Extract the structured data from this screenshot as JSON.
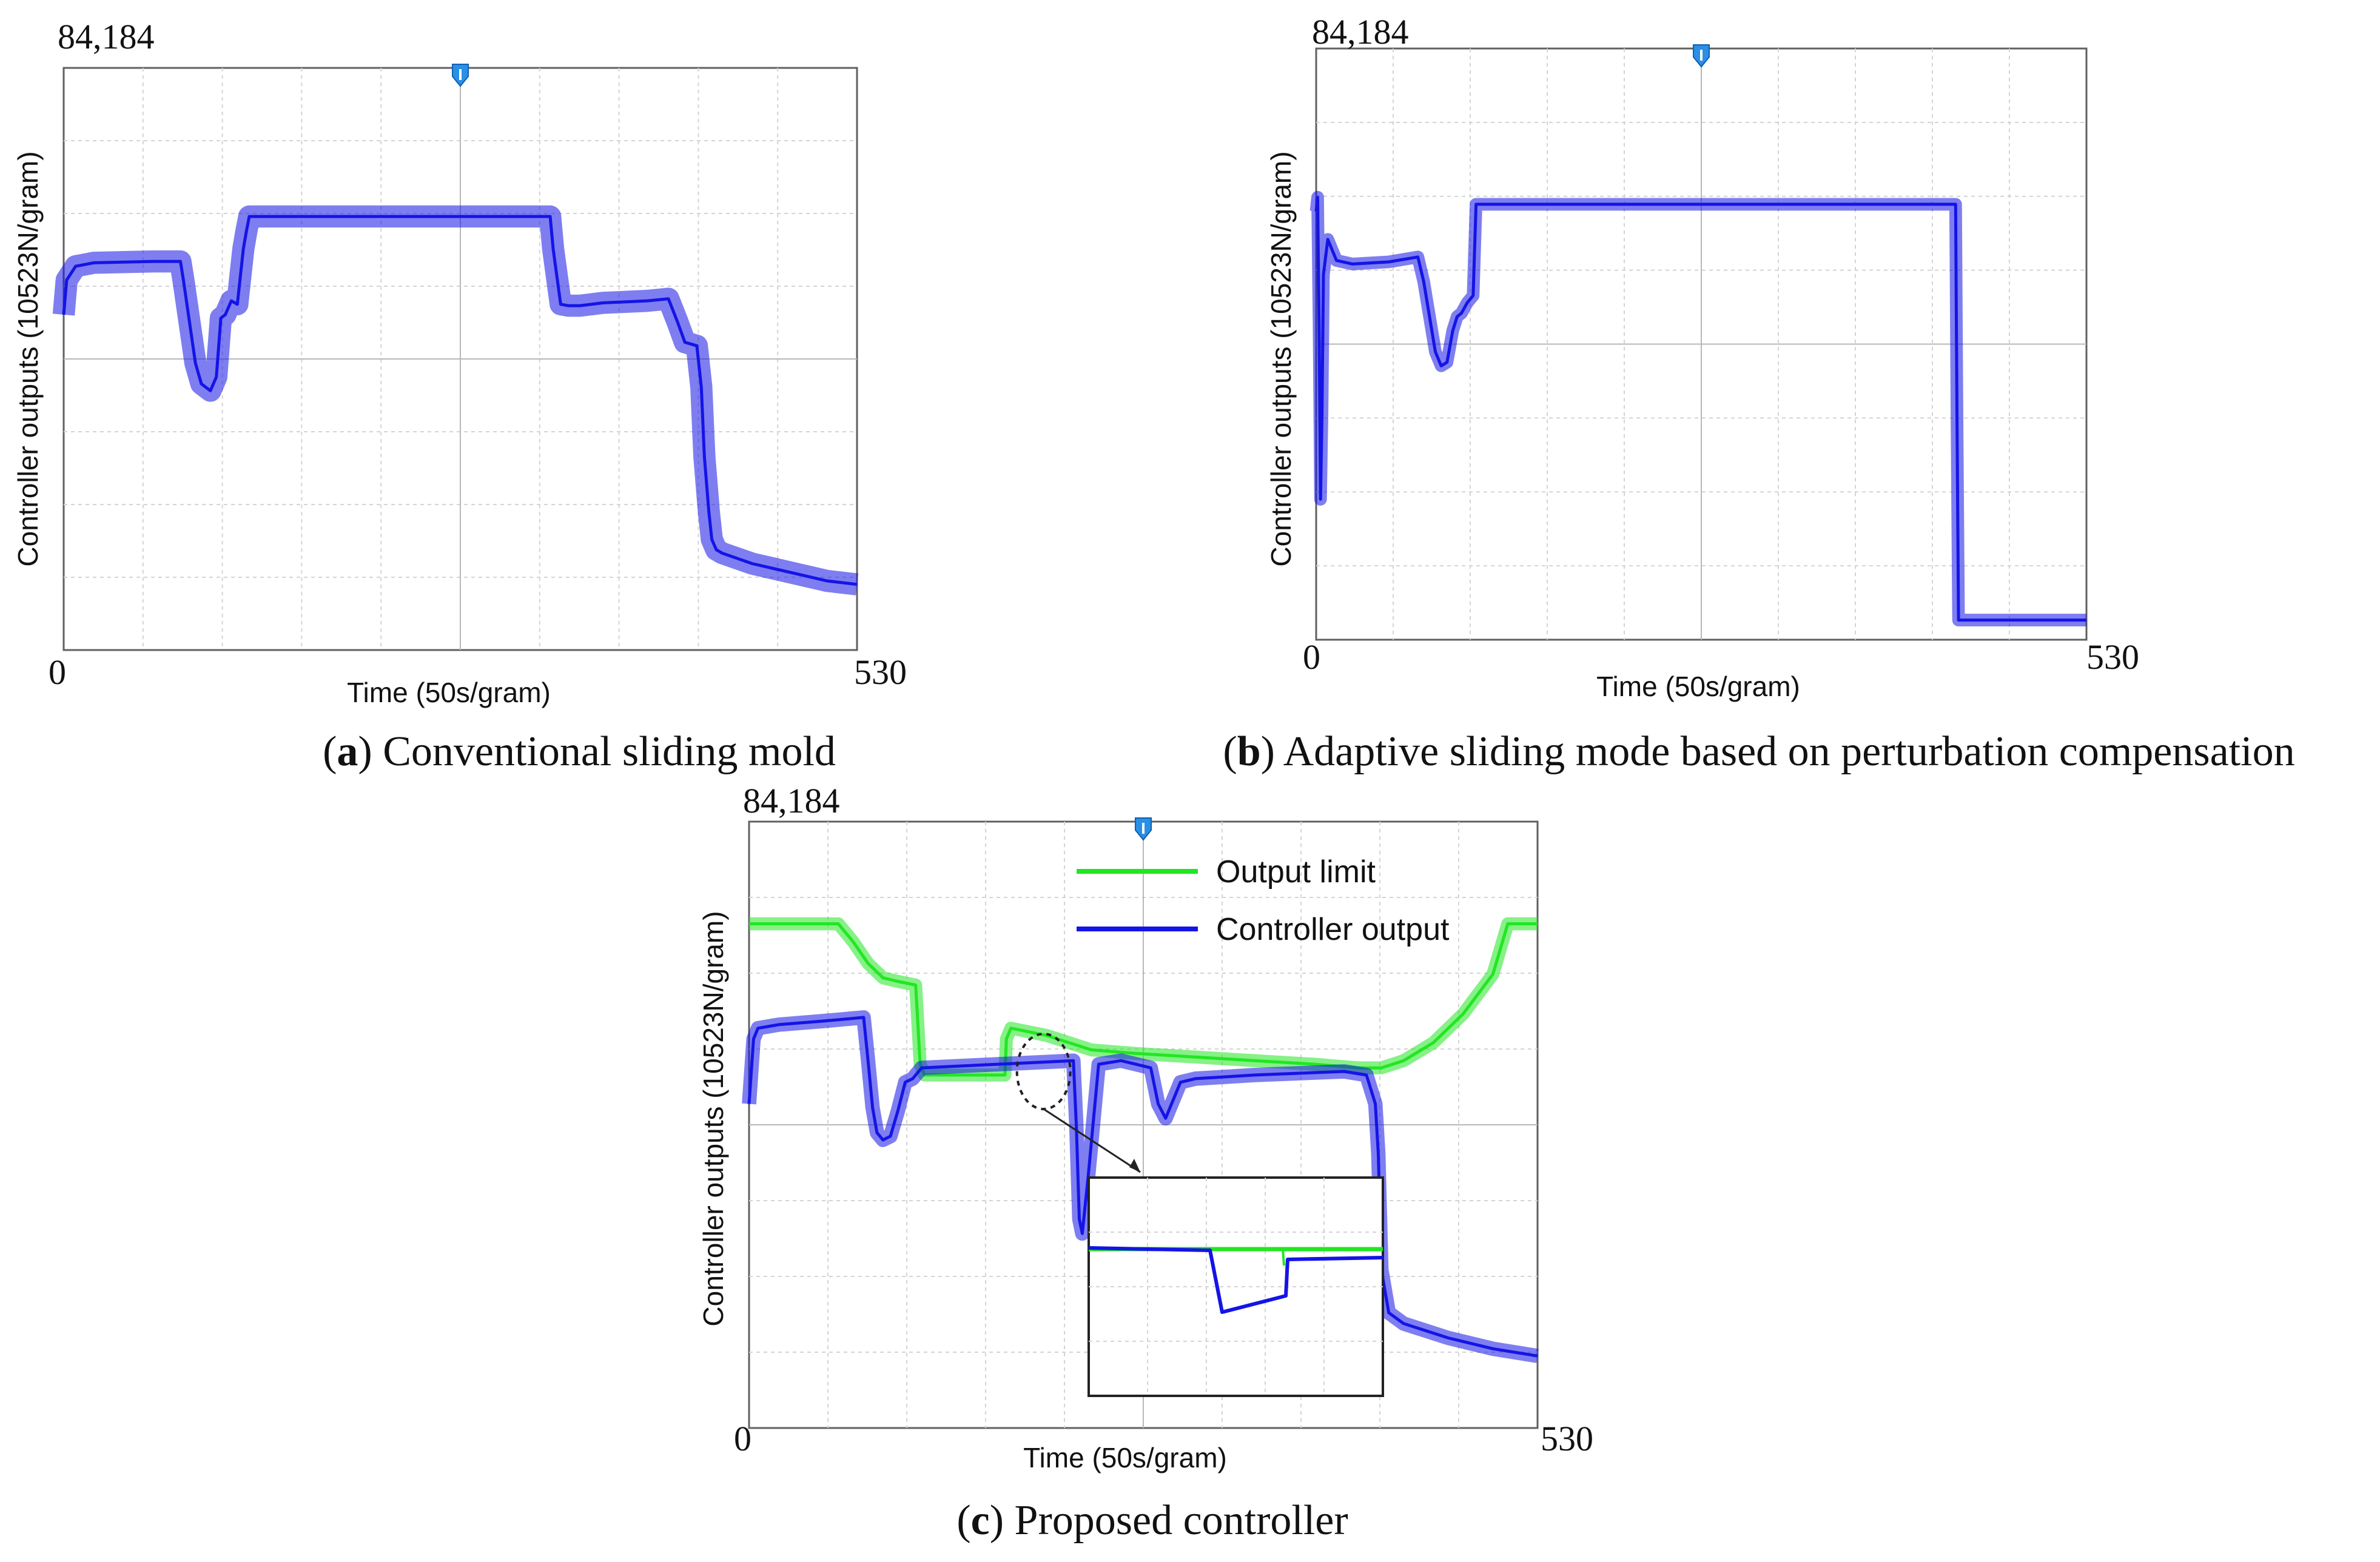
{
  "chart_data": [
    {
      "type": "line",
      "panel_letter": "a",
      "caption": "Conventional sliding mold",
      "ylabel": "Controller outputs (10523N/gram)",
      "xlabel": "Time (50s/gram)",
      "ylim": [
        0,
        84184
      ],
      "xlim": [
        0,
        530
      ],
      "y_top_label": "84,184",
      "y_bottom_label": "0",
      "x_right_label": "530",
      "grid": true,
      "series": [
        {
          "color": "#1414e6",
          "x": [
            0,
            2,
            8,
            20,
            40,
            60,
            78,
            80,
            84,
            88,
            92,
            98,
            102,
            105,
            108,
            112,
            116,
            120,
            122,
            124,
            140,
            200,
            250,
            300,
            325,
            327,
            332,
            337,
            345,
            360,
            390,
            404,
            410,
            415,
            423,
            426,
            428,
            431,
            433,
            436,
            440,
            460,
            490,
            510,
            530
          ],
          "y": [
            48500,
            53500,
            55500,
            56000,
            56100,
            56200,
            56200,
            53500,
            47500,
            41500,
            38500,
            37500,
            39500,
            48000,
            48500,
            50500,
            50000,
            58000,
            60500,
            62700,
            62700,
            62700,
            62700,
            62700,
            62700,
            58000,
            50000,
            49800,
            49800,
            50200,
            50500,
            50800,
            47500,
            44500,
            44000,
            38000,
            28000,
            20000,
            16000,
            14500,
            14000,
            12500,
            11000,
            10000,
            9500
          ],
          "band": 1600
        }
      ]
    },
    {
      "type": "line",
      "panel_letter": "b",
      "caption": "Adaptive sliding mode based on perturbation compensation",
      "ylabel": "Controller outputs (10523N/gram)",
      "xlabel": "Time (50s/gram)",
      "ylim": [
        0,
        84184
      ],
      "xlim": [
        0,
        530
      ],
      "y_top_label": "84,184",
      "y_bottom_label": "0",
      "x_right_label": "530",
      "grid": true,
      "series": [
        {
          "color": "#1414e6",
          "x": [
            0,
            1,
            2,
            3,
            4,
            5,
            8,
            14,
            25,
            50,
            70,
            74,
            78,
            82,
            86,
            90,
            94,
            97,
            100,
            104,
            108,
            110,
            150,
            250,
            350,
            440,
            441,
            442,
            460,
            500,
            530
          ],
          "y": [
            61000,
            63000,
            45000,
            20000,
            32000,
            52000,
            57000,
            54000,
            53500,
            53800,
            54500,
            51000,
            46000,
            41000,
            39000,
            39500,
            44000,
            46000,
            46500,
            48000,
            49000,
            62000,
            62000,
            62000,
            62000,
            62000,
            30000,
            2800,
            2800,
            2800,
            2800
          ],
          "band": 900
        }
      ]
    },
    {
      "type": "line",
      "panel_letter": "c",
      "caption": "Proposed controller",
      "ylabel": "Controller outputs (10523N/gram)",
      "xlabel": "Time (50s/gram)",
      "ylim": [
        0,
        84184
      ],
      "xlim": [
        0,
        530
      ],
      "y_top_label": "84,184",
      "y_bottom_label": "0",
      "x_right_label": "530",
      "grid": true,
      "legend": "top-right",
      "series": [
        {
          "name": "Output  limit",
          "color": "#22e622",
          "x": [
            0,
            60,
            70,
            80,
            90,
            100,
            112,
            115,
            118,
            172,
            173,
            176,
            200,
            230,
            260,
            300,
            340,
            380,
            410,
            425,
            440,
            460,
            480,
            500,
            510,
            530
          ],
          "y": [
            70000,
            70000,
            67500,
            64500,
            62500,
            62000,
            61500,
            50500,
            49000,
            49000,
            54000,
            55500,
            54500,
            52500,
            52000,
            51500,
            51000,
            50500,
            50000,
            50000,
            51000,
            53500,
            57500,
            63000,
            70000,
            70000
          ],
          "band": 900
        },
        {
          "name": "Controller output",
          "color": "#1414e6",
          "x": [
            0,
            3,
            6,
            20,
            50,
            77,
            80,
            83,
            86,
            90,
            95,
            100,
            105,
            110,
            112,
            116,
            218,
            220,
            222,
            224,
            228,
            235,
            250,
            260,
            270,
            275,
            280,
            290,
            300,
            340,
            400,
            415,
            421,
            423,
            425,
            430,
            440,
            470,
            500,
            530
          ],
          "y": [
            45000,
            54000,
            55500,
            56000,
            56500,
            57000,
            51000,
            44500,
            41000,
            40000,
            40500,
            44000,
            48000,
            48500,
            49000,
            50000,
            51000,
            42000,
            29000,
            27000,
            35000,
            50500,
            51000,
            50500,
            50000,
            45000,
            43000,
            48000,
            48500,
            49000,
            49500,
            49000,
            45000,
            38000,
            22000,
            16000,
            14500,
            12500,
            11000,
            10000
          ],
          "band": 1000
        }
      ]
    }
  ]
}
